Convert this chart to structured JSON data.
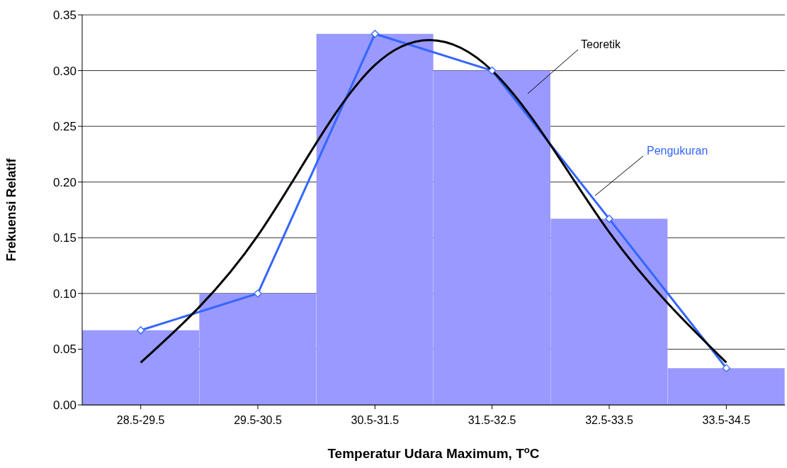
{
  "chart_data": {
    "type": "bar",
    "xlabel": "Temperatur Udara Maximum, T$^{o}$C",
    "ylabel": "Frekuensi Relatif",
    "categories": [
      "28.5-29.5",
      "29.5-30.5",
      "30.5-31.5",
      "31.5-32.5",
      "32.5-33.5",
      "33.5-34.5"
    ],
    "series": [
      {
        "color": "#9999ff",
        "values": [
          0.067,
          0.1,
          0.333,
          0.3,
          0.167,
          0.033
        ]
      },
      {
        "type": "line",
        "name": "Pengukuran",
        "color": "#3366ff",
        "marker": "diamond",
        "values": [
          0.067,
          0.1,
          0.333,
          0.3,
          0.167,
          0.033
        ]
      },
      {
        "type": "line",
        "name": "Teoretik",
        "color": "#000000",
        "marker": "none",
        "values": [
          0.038,
          0.152,
          0.305,
          0.3,
          0.155,
          0.038
        ]
      }
    ],
    "ylim": [
      0,
      0.35
    ],
    "yticks": [
      {
        "value": 0,
        "label": "0.00"
      },
      {
        "value": 0.05,
        "label": "0.05"
      },
      {
        "value": 0.1,
        "label": "0.10"
      },
      {
        "value": 0.15,
        "label": "0.15"
      },
      {
        "value": 0.2,
        "label": "0.20"
      },
      {
        "value": 0.25,
        "label": "0.25"
      },
      {
        "value": 0.3,
        "label": "0.30"
      },
      {
        "value": 0.35,
        "label": "0.35"
      }
    ],
    "grid": "y",
    "legend": false
  }
}
